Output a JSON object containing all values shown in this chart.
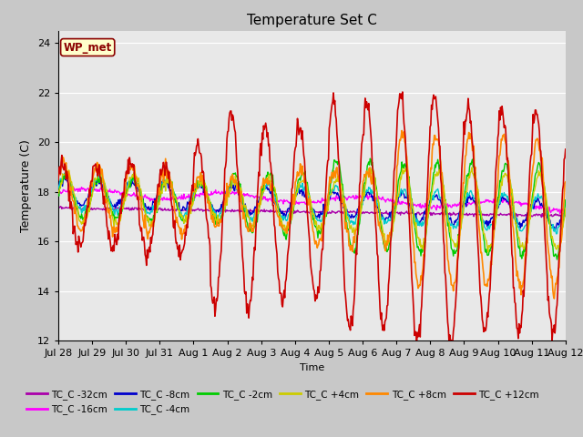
{
  "title": "Temperature Set C",
  "xlabel": "Time",
  "ylabel": "Temperature (C)",
  "ylim": [
    12,
    24.5
  ],
  "yticks": [
    12,
    14,
    16,
    18,
    20,
    22,
    24
  ],
  "fig_bg_color": "#c8c8c8",
  "plot_bg_color": "#e8e8e8",
  "grid_color": "#ffffff",
  "annotation_text": "WP_met",
  "annotation_bg": "#ffffcc",
  "annotation_border": "#8B0000",
  "annotation_text_color": "#8B0000",
  "series_colors": {
    "TC_C -32cm": "#aa00aa",
    "TC_C -16cm": "#ff00ff",
    "TC_C -8cm": "#0000cc",
    "TC_C -4cm": "#00cccc",
    "TC_C -2cm": "#00cc00",
    "TC_C +4cm": "#cccc00",
    "TC_C +8cm": "#ff8800",
    "TC_C +12cm": "#cc0000"
  },
  "xtick_labels": [
    "Jul 28",
    "Jul 29",
    "Jul 30",
    "Jul 31",
    "Aug 1",
    "Aug 2",
    "Aug 3",
    "Aug 4",
    "Aug 5",
    "Aug 6",
    "Aug 7",
    "Aug 8",
    "Aug 9",
    "Aug 10",
    "Aug 11",
    "Aug 12"
  ],
  "xtick_positions": [
    0,
    1,
    2,
    3,
    4,
    5,
    6,
    7,
    8,
    9,
    10,
    11,
    12,
    13,
    14,
    15
  ]
}
